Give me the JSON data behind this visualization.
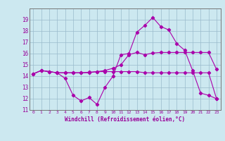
{
  "xlabel": "Windchill (Refroidissement éolien,°C)",
  "x_values": [
    0,
    1,
    2,
    3,
    4,
    5,
    6,
    7,
    8,
    9,
    10,
    11,
    12,
    13,
    14,
    15,
    16,
    17,
    18,
    19,
    20,
    21,
    22,
    23
  ],
  "line1_y": [
    14.2,
    14.5,
    14.4,
    14.3,
    14.3,
    14.3,
    14.3,
    14.35,
    14.4,
    14.5,
    14.7,
    15.0,
    15.9,
    16.1,
    15.9,
    16.05,
    16.1,
    16.1,
    16.1,
    16.1,
    16.1,
    16.1,
    16.1,
    14.6
  ],
  "line2_y": [
    14.2,
    14.5,
    14.4,
    14.3,
    13.8,
    12.3,
    11.8,
    12.1,
    11.5,
    13.0,
    14.0,
    15.9,
    16.0,
    17.9,
    18.5,
    19.2,
    18.4,
    18.1,
    16.9,
    16.3,
    14.5,
    12.5,
    12.3,
    12.0
  ],
  "line3_y": [
    14.2,
    14.5,
    14.4,
    14.3,
    14.3,
    14.3,
    14.3,
    14.3,
    14.4,
    14.4,
    14.4,
    14.4,
    14.4,
    14.4,
    14.3,
    14.3,
    14.3,
    14.3,
    14.3,
    14.3,
    14.3,
    14.3,
    14.3,
    12.0
  ],
  "line_color": "#aa00aa",
  "bg_color": "#cce8f0",
  "grid_color": "#99bbcc",
  "text_color": "#990099",
  "ylim": [
    11,
    20
  ],
  "xlim": [
    -0.5,
    23.5
  ],
  "yticks": [
    11,
    12,
    13,
    14,
    15,
    16,
    17,
    18,
    19
  ],
  "xticks": [
    0,
    1,
    2,
    3,
    4,
    5,
    6,
    7,
    8,
    9,
    10,
    11,
    12,
    13,
    14,
    15,
    16,
    17,
    18,
    19,
    20,
    21,
    22,
    23
  ]
}
